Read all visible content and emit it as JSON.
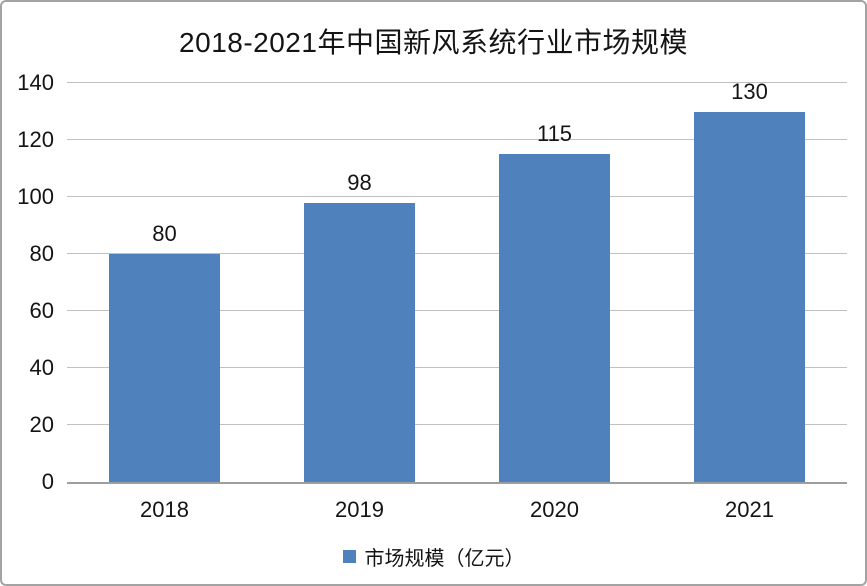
{
  "chart_data": {
    "type": "bar",
    "title": "2018-2021年中国新风系统行业市场规模",
    "categories": [
      "2018",
      "2019",
      "2020",
      "2021"
    ],
    "values": [
      80,
      98,
      115,
      130
    ],
    "legend_label": "市场规模（亿元）",
    "xlabel": "",
    "ylabel": "",
    "ylim": [
      0,
      140
    ],
    "yticks": [
      0,
      20,
      40,
      60,
      80,
      100,
      120,
      140
    ],
    "grid": true,
    "legend_position": "bottom",
    "bar_color": "#4f81bd",
    "gridline_color": "#c0c0c0",
    "axis_line_color": "#9e9e9e",
    "frame_border_color": "#a3a3a3",
    "text_color": "#141414"
  }
}
